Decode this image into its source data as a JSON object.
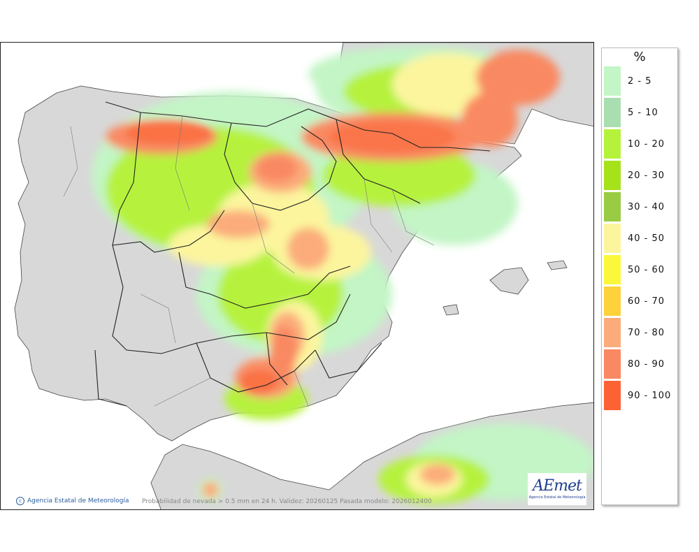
{
  "footer": {
    "copyright": "Agencia Estatal de Meteorología",
    "caption": "Probabilidad de nevada > 0.5 mm en 24 h. Validez: 20260125 Pasada modelo: 2026012400"
  },
  "logo": {
    "text": "AEmet",
    "subtitle": "Agencia Estatal de Meteorología"
  },
  "legend": {
    "title": "%",
    "items": [
      {
        "label": "2 - 5",
        "color": "#c3f5c6"
      },
      {
        "label": "5 - 10",
        "color": "#a9dfb0"
      },
      {
        "label": "10 - 20",
        "color": "#b6f23c"
      },
      {
        "label": "20 - 30",
        "color": "#a6e21a"
      },
      {
        "label": "30 - 40",
        "color": "#99cc44"
      },
      {
        "label": "40 - 50",
        "color": "#fcf59e"
      },
      {
        "label": "50 - 60",
        "color": "#fbf83b"
      },
      {
        "label": "60 - 70",
        "color": "#fdd23a"
      },
      {
        "label": "70 - 80",
        "color": "#fbac7a"
      },
      {
        "label": "80 - 90",
        "color": "#f98962"
      },
      {
        "label": "90 - 100",
        "color": "#fc6234"
      }
    ]
  },
  "colors": {
    "land": "#d8d8d8",
    "sea": "#ffffff",
    "border": "#222222"
  }
}
